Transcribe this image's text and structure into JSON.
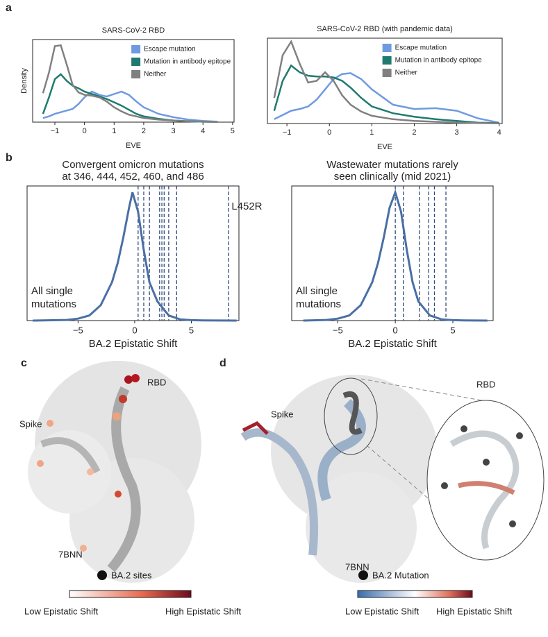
{
  "chart_data": [
    {
      "type": "line",
      "title": "SARS-CoV-2 RBD",
      "xlabel": "EVE",
      "ylabel": "Density",
      "x": [
        -1.4,
        -1.2,
        -1.0,
        -0.8,
        -0.6,
        -0.4,
        -0.2,
        0,
        0.25,
        0.5,
        0.75,
        1,
        1.25,
        1.5,
        1.75,
        2,
        2.5,
        3,
        3.5,
        4,
        4.5
      ],
      "series": [
        {
          "name": "Escape mutation",
          "color": "#6f9ae0",
          "values": [
            0.05,
            0.07,
            0.1,
            0.12,
            0.14,
            0.16,
            0.22,
            0.3,
            0.37,
            0.33,
            0.31,
            0.34,
            0.37,
            0.33,
            0.25,
            0.18,
            0.1,
            0.06,
            0.03,
            0.015,
            0.005
          ]
        },
        {
          "name": "Mutation in antibody epitope",
          "color": "#1f7a70",
          "values": [
            0.1,
            0.3,
            0.52,
            0.58,
            0.5,
            0.44,
            0.41,
            0.37,
            0.34,
            0.31,
            0.28,
            0.24,
            0.2,
            0.15,
            0.1,
            0.07,
            0.04,
            0.02,
            0.01,
            0.005,
            0.002
          ]
        },
        {
          "name": "Neither",
          "color": "#808080",
          "values": [
            0.35,
            0.6,
            0.92,
            0.93,
            0.7,
            0.45,
            0.36,
            0.33,
            0.32,
            0.3,
            0.25,
            0.18,
            0.13,
            0.09,
            0.07,
            0.05,
            0.03,
            0.02,
            0.01,
            0.005,
            0.002
          ]
        }
      ],
      "xlim": [
        -1.75,
        5.05
      ],
      "xticks": [
        {
          "value": -1,
          "label": "−1"
        },
        0,
        1,
        2,
        3,
        4,
        5
      ],
      "ylim": [
        0,
        1
      ]
    },
    {
      "type": "line",
      "title": "SARS-CoV-2 RBD (with pandemic data)",
      "xlabel": "EVE",
      "x": [
        -1.3,
        -1.1,
        -0.9,
        -0.7,
        -0.5,
        -0.3,
        -0.1,
        0.1,
        0.3,
        0.5,
        0.75,
        1,
        1.5,
        2,
        2.5,
        3,
        3.5,
        4
      ],
      "series": [
        {
          "name": "Escape mutation",
          "color": "#6f9ae0",
          "values": [
            0.05,
            0.1,
            0.15,
            0.17,
            0.2,
            0.28,
            0.4,
            0.52,
            0.58,
            0.59,
            0.52,
            0.4,
            0.22,
            0.17,
            0.18,
            0.15,
            0.06,
            0.01
          ]
        },
        {
          "name": "Mutation in antibody epitope",
          "color": "#1f7a70",
          "values": [
            0.15,
            0.5,
            0.68,
            0.6,
            0.56,
            0.55,
            0.55,
            0.54,
            0.5,
            0.42,
            0.3,
            0.2,
            0.12,
            0.08,
            0.05,
            0.03,
            0.01,
            0.005
          ]
        },
        {
          "name": "Neither",
          "color": "#808080",
          "values": [
            0.3,
            0.8,
            0.96,
            0.7,
            0.48,
            0.5,
            0.6,
            0.5,
            0.33,
            0.22,
            0.14,
            0.09,
            0.05,
            0.03,
            0.02,
            0.01,
            0.005,
            0.002
          ]
        }
      ],
      "xlim": [
        -1.46,
        4.07
      ],
      "xticks": [
        {
          "value": -1,
          "label": "−1"
        },
        0,
        1,
        2,
        3,
        4
      ],
      "ylim": [
        0,
        1
      ]
    },
    {
      "type": "line",
      "title": [
        "Convergent omicron mutations",
        "at 346, 444, 452, 460, and 486"
      ],
      "xlabel": "BA.2 Epistatic Shift",
      "annotation": [
        "All single",
        "mutations"
      ],
      "x": [
        -9,
        -6,
        -5,
        -4,
        -3,
        -2,
        -1.5,
        -1,
        -0.5,
        -0.2,
        0.3,
        0.8,
        1.3,
        2,
        3,
        4,
        5,
        6,
        9
      ],
      "series": [
        {
          "color": "#4a6fa5",
          "values": [
            0,
            0.005,
            0.015,
            0.04,
            0.12,
            0.3,
            0.45,
            0.65,
            0.88,
            1,
            0.85,
            0.55,
            0.3,
            0.15,
            0.04,
            0.01,
            0.003,
            0.001,
            0
          ]
        }
      ],
      "vlines": [
        0.3,
        0.8,
        1.3,
        2.2,
        2.4,
        2.6,
        3.0,
        3.7,
        8.3
      ],
      "vline_color": "#2f4b7c",
      "vline_label": "L452R",
      "xlim": [
        -9.5,
        9.2
      ],
      "xticks": [
        {
          "value": -5,
          "label": "−5"
        },
        0,
        5
      ],
      "ylim": [
        0,
        1.05
      ]
    },
    {
      "type": "line",
      "title": [
        "Wastewater mutations rarely",
        "seen clinically (mid 2021)"
      ],
      "xlabel": "BA.2 Epistatic Shift",
      "annotation": [
        "All single",
        "mutations"
      ],
      "x": [
        -8,
        -6,
        -5,
        -4,
        -3,
        -2,
        -1.5,
        -1,
        -0.5,
        0,
        0.5,
        1,
        1.5,
        2,
        3,
        4,
        5,
        6,
        8
      ],
      "series": [
        {
          "color": "#4a6fa5",
          "values": [
            0,
            0.005,
            0.015,
            0.04,
            0.12,
            0.3,
            0.45,
            0.65,
            0.88,
            1,
            0.85,
            0.55,
            0.3,
            0.15,
            0.04,
            0.01,
            0.003,
            0.001,
            0
          ]
        }
      ],
      "vlines": [
        0,
        0.7,
        2.1,
        2.9,
        3.4,
        4.4
      ],
      "vline_color": "#2f4b7c",
      "xlim": [
        -9,
        8.5
      ],
      "xticks": [
        {
          "value": -5,
          "label": "−5"
        },
        0,
        5
      ],
      "ylim": [
        0,
        1.05
      ]
    }
  ],
  "panels": {
    "a": "a",
    "b": "b",
    "c": {
      "label": "c",
      "rbd": "RBD",
      "spike": "Spike",
      "structure": "7BNN",
      "legend": "BA.2 sites",
      "low": "Low Epistatic Shift",
      "high": "High Epistatic Shift"
    },
    "d": {
      "label": "d",
      "rbd": "RBD",
      "spike": "Spike",
      "structure": "7BNN",
      "legend": "BA.2 Mutation",
      "low": "Low Epistatic Shift",
      "high": "High Epistatic Shift"
    }
  }
}
